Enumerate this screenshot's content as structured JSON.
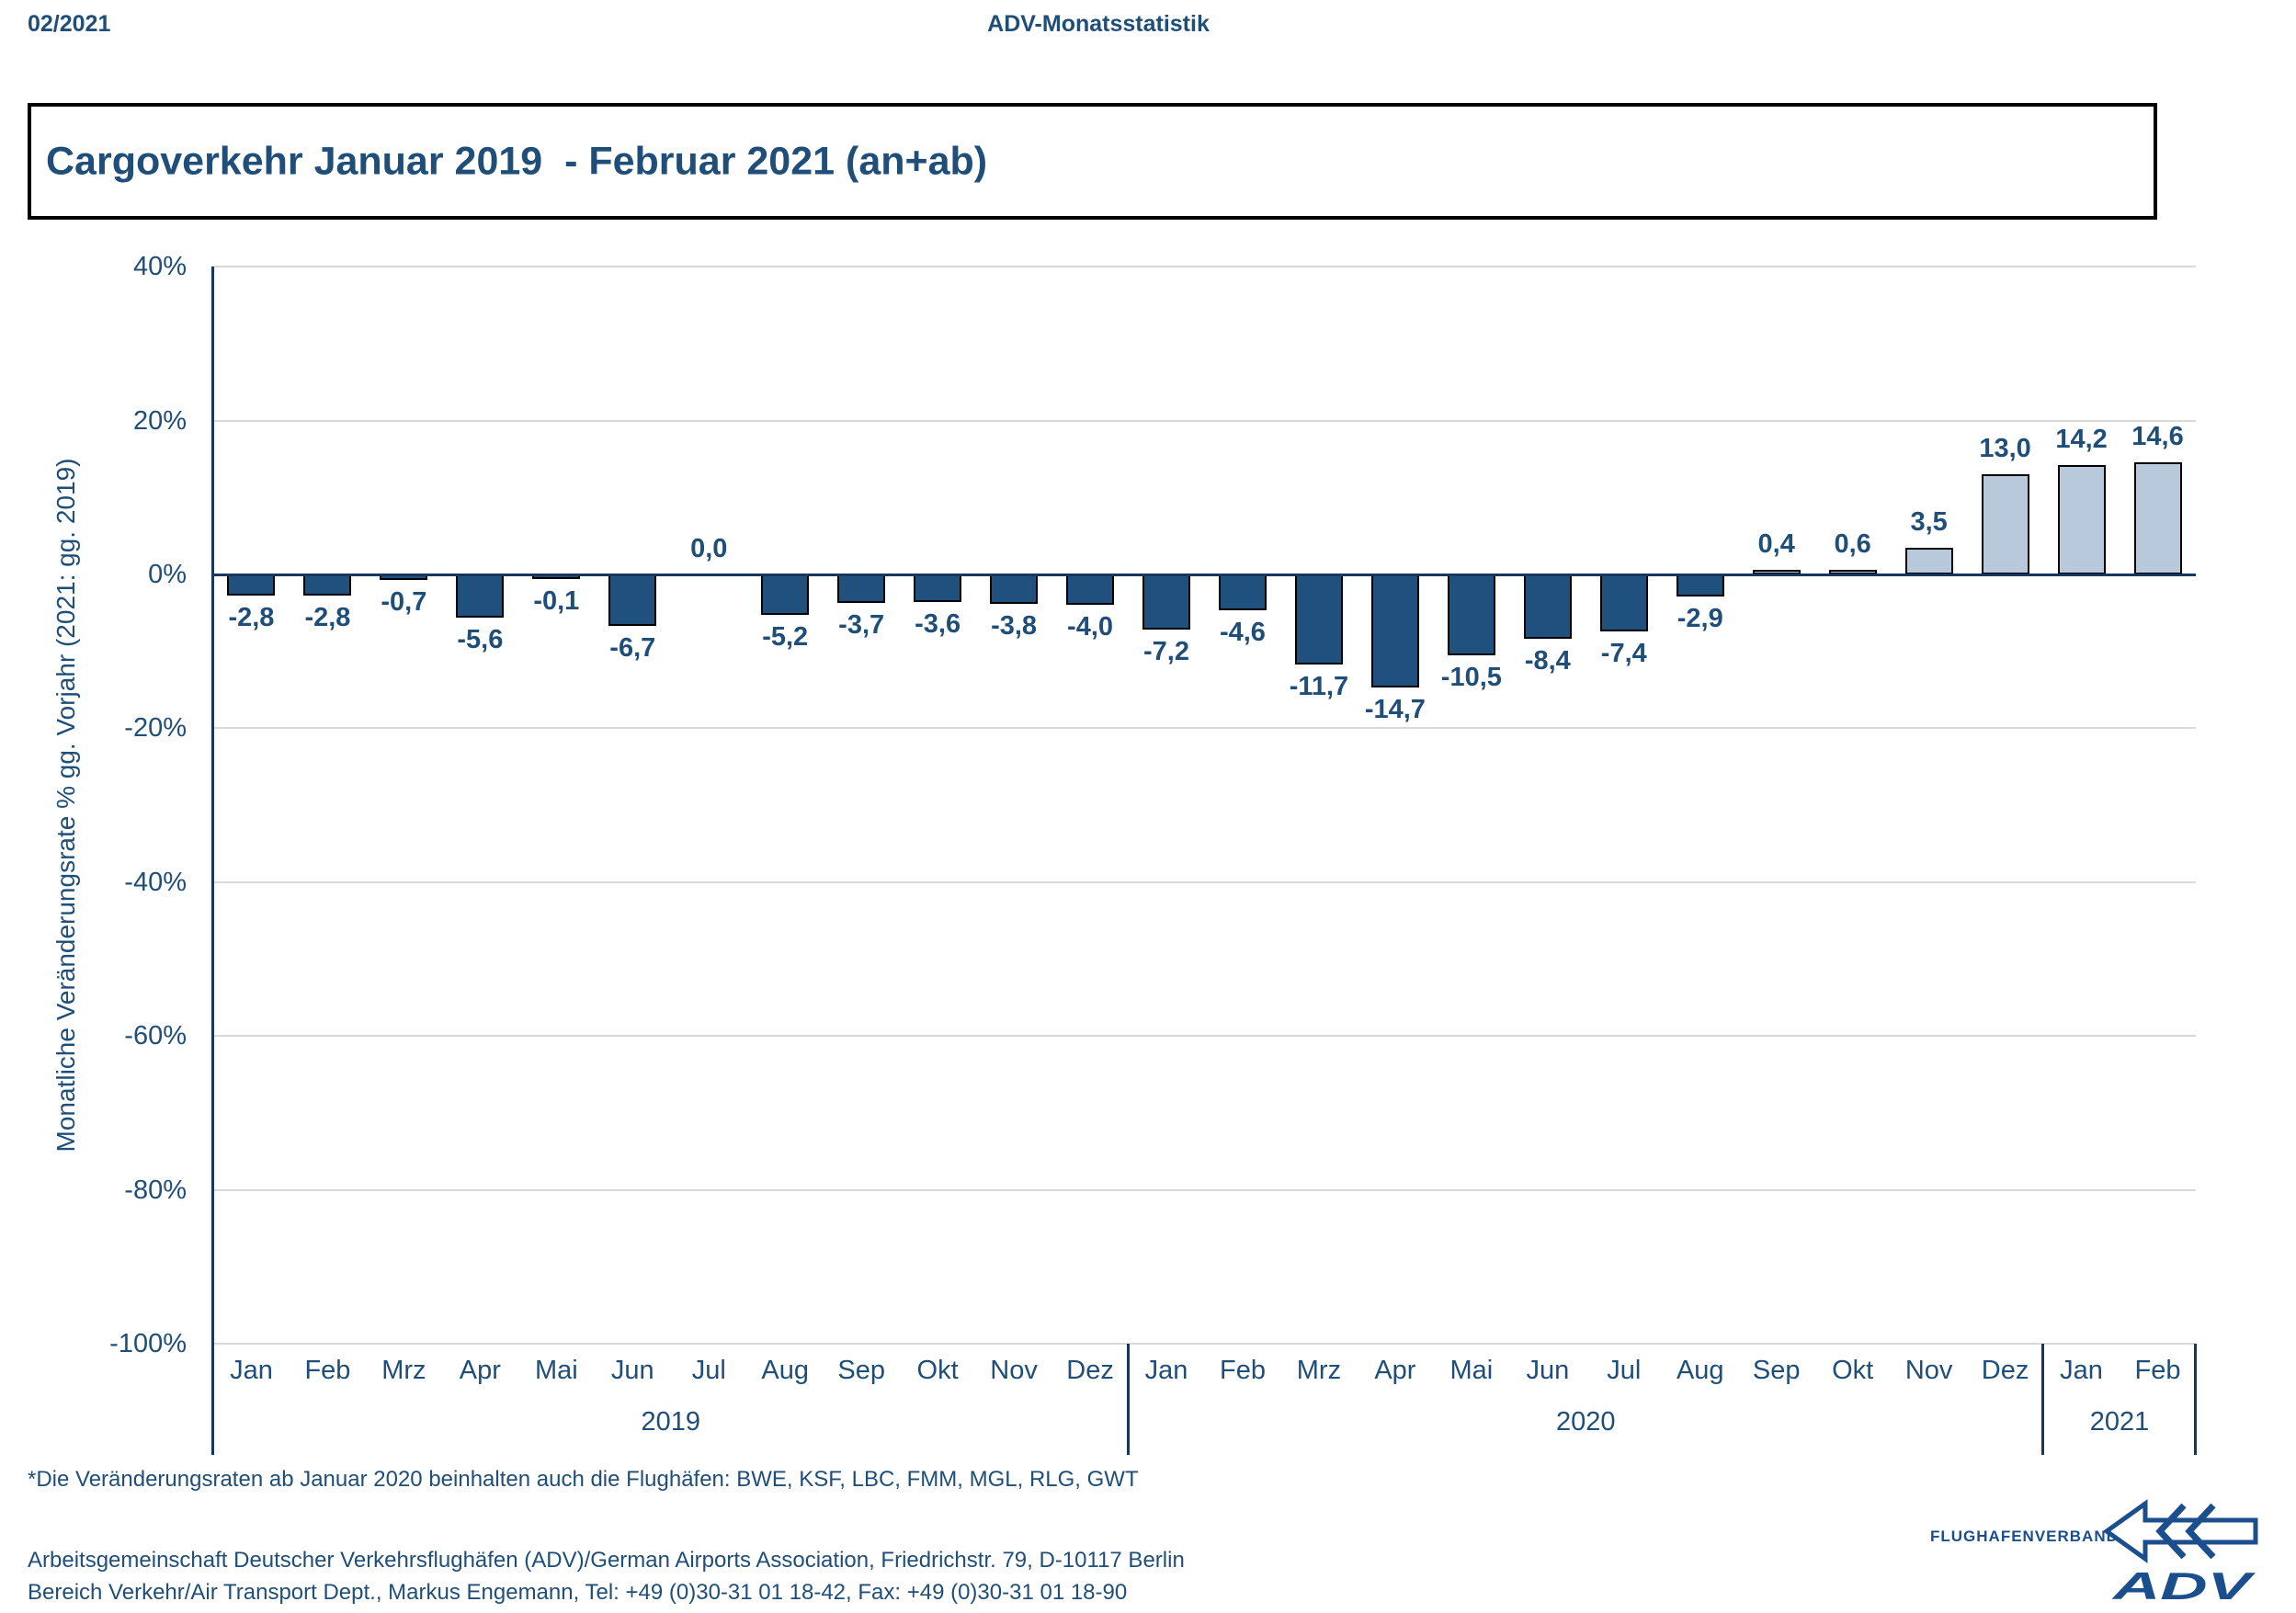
{
  "header": {
    "issue": "02/2021",
    "center": "ADV-Monatsstatistik"
  },
  "title": "Cargoverkehr Januar 2019  - Februar 2021 (an+ab)",
  "chart_data": {
    "type": "bar",
    "title": "Cargoverkehr Januar 2019  - Februar 2021 (an+ab)",
    "ylabel": "Monatliche Veränderungsrate % gg. Vorjahr (2021: gg. 2019)",
    "xlabel": "",
    "ylim": [
      -100,
      40
    ],
    "grid": true,
    "legend": "none",
    "categories": [
      "Jan",
      "Feb",
      "Mrz",
      "Apr",
      "Mai",
      "Jun",
      "Jul",
      "Aug",
      "Sep",
      "Okt",
      "Nov",
      "Dez",
      "Jan",
      "Feb",
      "Mrz",
      "Apr",
      "Mai",
      "Jun",
      "Jul",
      "Aug",
      "Sep",
      "Okt",
      "Nov",
      "Dez",
      "Jan",
      "Feb"
    ],
    "values": [
      -2.8,
      -2.8,
      -0.7,
      -5.6,
      -0.1,
      -6.7,
      0.0,
      -5.2,
      -3.7,
      -3.6,
      -3.8,
      -4.0,
      -7.2,
      -4.6,
      -11.7,
      -14.7,
      -10.5,
      -8.4,
      -7.4,
      -2.9,
      0.4,
      0.6,
      3.5,
      13.0,
      14.2,
      14.6
    ],
    "value_labels": [
      "-2,8",
      "-2,8",
      "-0,7",
      "-5,6",
      "-0,1",
      "-6,7",
      "0,0",
      "-5,2",
      "-3,7",
      "-3,6",
      "-3,8",
      "-4,0",
      "-7,2",
      "-4,6",
      "-11,7",
      "-14,7",
      "-10,5",
      "-8,4",
      "-7,4",
      "-2,9",
      "0,4",
      "0,6",
      "3,5",
      "13,0",
      "14,2",
      "14,6"
    ],
    "year_groups": [
      {
        "label": "2019",
        "span": 12
      },
      {
        "label": "2020",
        "span": 12
      },
      {
        "label": "2021",
        "span": 2
      }
    ],
    "yticks": [
      {
        "v": 40,
        "label": "40%"
      },
      {
        "v": 20,
        "label": "20%"
      },
      {
        "v": 0,
        "label": "0%"
      },
      {
        "v": -20,
        "label": "-20%"
      },
      {
        "v": -40,
        "label": "-40%"
      },
      {
        "v": -60,
        "label": "-60%"
      },
      {
        "v": -80,
        "label": "-80%"
      },
      {
        "v": -100,
        "label": "-100%"
      }
    ],
    "colors": {
      "positive_bar": "#B8C9DB",
      "negative_bar": "#20507E",
      "bar_border": "#000000",
      "axis": "#17375E",
      "grid": "#D9D9D9",
      "text": "#1F4E79"
    }
  },
  "footnote": "*Die Veränderungsraten ab Januar 2020 beinhalten auch die Flughäfen: BWE, KSF, LBC, FMM, MGL, RLG, GWT",
  "footer": {
    "line1": "Arbeitsgemeinschaft Deutscher Verkehrsflughäfen (ADV)/German Airports Association, Friedrichstr. 79, D-10117 Berlin",
    "line2": "Bereich Verkehr/Air Transport Dept., Markus Engemann, Tel: +49 (0)30-31 01 18-42, Fax: +49 (0)30-31 01 18-90"
  },
  "logo": {
    "text": "FLUGHAFENVERBAND",
    "brand": "ADV"
  }
}
